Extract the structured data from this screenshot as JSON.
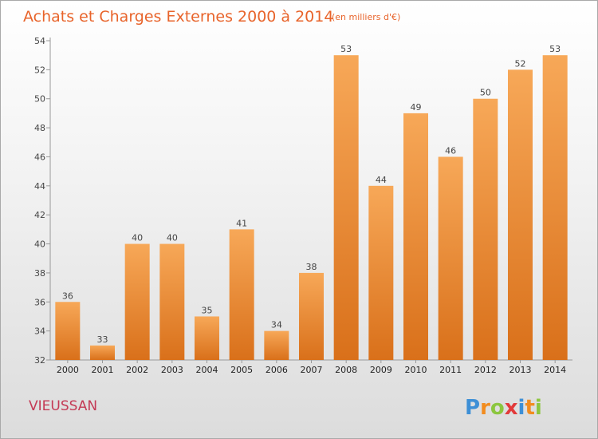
{
  "title": "Achats et Charges Externes 2000 à 2014",
  "subtitle": "(en milliers d'€)",
  "commune": "VIEUSSAN",
  "logo": {
    "letters": [
      "P",
      "r",
      "o",
      "x",
      "i",
      "t",
      "i"
    ],
    "colors": [
      "#3d8fd6",
      "#f28c1e",
      "#8cc63f",
      "#e23a3a",
      "#3d8fd6",
      "#f28c1e",
      "#8cc63f"
    ]
  },
  "colors": {
    "bar_top": "#f7a858",
    "bar_bottom": "#d9701a",
    "axis": "#999999"
  },
  "chart_data": {
    "type": "bar",
    "title": "Achats et Charges Externes 2000 à 2014",
    "subtitle": "(en milliers d'€)",
    "xlabel": "",
    "ylabel": "",
    "categories": [
      "2000",
      "2001",
      "2002",
      "2003",
      "2004",
      "2005",
      "2006",
      "2007",
      "2008",
      "2009",
      "2010",
      "2011",
      "2012",
      "2013",
      "2014"
    ],
    "values": [
      36,
      33,
      40,
      40,
      35,
      41,
      34,
      38,
      53,
      44,
      49,
      46,
      50,
      52,
      53
    ],
    "ylim": [
      32,
      54
    ],
    "yticks": [
      32,
      34,
      36,
      38,
      40,
      42,
      44,
      46,
      48,
      50,
      52,
      54
    ],
    "grid": false,
    "legend": "none"
  }
}
